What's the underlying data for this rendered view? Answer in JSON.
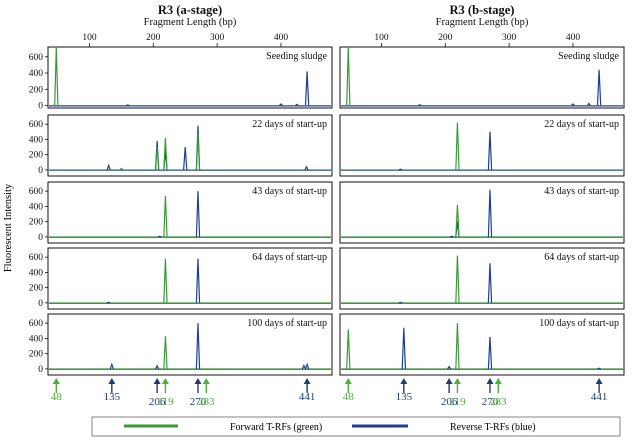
{
  "chart_data": {
    "type": "line",
    "ylabel": "Fluorescent Intensity",
    "columns": [
      {
        "title": "R3 (a-stage)",
        "xlabel": "Fragment Length (bp)",
        "xlim": [
          35,
          480
        ],
        "xticks": [
          100,
          200,
          300,
          400
        ],
        "panels": [
          {
            "label": "Seeding sludge",
            "ylim": [
              -30,
              720
            ],
            "yticks": [
              0,
              200,
              400,
              600
            ],
            "forward": [
              [
                48,
                720
              ]
            ],
            "reverse": [
              [
                441,
                420
              ],
              [
                400,
                20
              ],
              [
                425,
                15
              ],
              [
                160,
                8
              ]
            ]
          },
          {
            "label": "22 days of start-up",
            "ylim": [
              -80,
              720
            ],
            "yticks": [
              0,
              200,
              400,
              600
            ],
            "forward": [
              [
                206,
                300
              ],
              [
                219,
                420
              ],
              [
                270,
                480
              ],
              [
                150,
                20
              ]
            ],
            "reverse": [
              [
                206,
                380
              ],
              [
                219,
                250
              ],
              [
                250,
                300
              ],
              [
                270,
                580
              ],
              [
                130,
                60
              ],
              [
                440,
                40
              ]
            ]
          },
          {
            "label": "43 days of start-up",
            "ylim": [
              -80,
              720
            ],
            "yticks": [
              0,
              200,
              400,
              600
            ],
            "forward": [
              [
                219,
                540
              ]
            ],
            "reverse": [
              [
                270,
                600
              ],
              [
                210,
                8
              ]
            ]
          },
          {
            "label": "64 days of start-up",
            "ylim": [
              -80,
              720
            ],
            "yticks": [
              0,
              200,
              400,
              600
            ],
            "forward": [
              [
                219,
                580
              ]
            ],
            "reverse": [
              [
                270,
                580
              ],
              [
                130,
                8
              ]
            ]
          },
          {
            "label": "100 days of start-up",
            "ylim": [
              -80,
              720
            ],
            "yticks": [
              0,
              200,
              400,
              600
            ],
            "forward": [
              [
                219,
                430
              ]
            ],
            "reverse": [
              [
                270,
                600
              ],
              [
                135,
                60
              ],
              [
                206,
                40
              ],
              [
                441,
                60
              ],
              [
                436,
                45
              ]
            ]
          }
        ],
        "markers": [
          {
            "x": 48,
            "label": "48",
            "color": "green"
          },
          {
            "x": 135,
            "label": "135",
            "color": "blue"
          },
          {
            "x": 206,
            "label": "206",
            "color": "blue"
          },
          {
            "x": 219,
            "label": "219",
            "color": "green"
          },
          {
            "x": 270,
            "label": "270",
            "color": "blue"
          },
          {
            "x": 283,
            "label": "283",
            "color": "green"
          },
          {
            "x": 441,
            "label": "441",
            "color": "blue"
          }
        ]
      },
      {
        "title": "R3 (b-stage)",
        "xlabel": "Fragment Length (bp)",
        "xlim": [
          35,
          480
        ],
        "xticks": [
          100,
          200,
          300,
          400
        ],
        "panels": [
          {
            "label": "Seeding sludge",
            "ylim": [
              -30,
              720
            ],
            "yticks": [],
            "forward": [
              [
                48,
                720
              ]
            ],
            "reverse": [
              [
                441,
                440
              ],
              [
                400,
                20
              ],
              [
                425,
                25
              ],
              [
                160,
                10
              ]
            ]
          },
          {
            "label": "22 days of start-up",
            "ylim": [
              -80,
              720
            ],
            "yticks": [],
            "forward": [
              [
                219,
                620
              ]
            ],
            "reverse": [
              [
                270,
                500
              ],
              [
                130,
                10
              ]
            ]
          },
          {
            "label": "43 days of start-up",
            "ylim": [
              -80,
              720
            ],
            "yticks": [],
            "forward": [
              [
                219,
                420
              ]
            ],
            "reverse": [
              [
                219,
                200
              ],
              [
                270,
                620
              ],
              [
                210,
                8
              ]
            ]
          },
          {
            "label": "64 days of start-up",
            "ylim": [
              -80,
              720
            ],
            "yticks": [],
            "forward": [
              [
                219,
                620
              ]
            ],
            "reverse": [
              [
                270,
                520
              ],
              [
                130,
                8
              ]
            ]
          },
          {
            "label": "100 days of start-up",
            "ylim": [
              -80,
              720
            ],
            "yticks": [],
            "forward": [
              [
                48,
                520
              ],
              [
                219,
                600
              ]
            ],
            "reverse": [
              [
                135,
                540
              ],
              [
                206,
                30
              ],
              [
                270,
                420
              ],
              [
                441,
                10
              ]
            ]
          }
        ],
        "markers": [
          {
            "x": 48,
            "label": "48",
            "color": "green"
          },
          {
            "x": 135,
            "label": "135",
            "color": "blue"
          },
          {
            "x": 206,
            "label": "206",
            "color": "blue"
          },
          {
            "x": 219,
            "label": "219",
            "color": "green"
          },
          {
            "x": 270,
            "label": "270",
            "color": "blue"
          },
          {
            "x": 283,
            "label": "283",
            "color": "green"
          },
          {
            "x": 441,
            "label": "441",
            "color": "blue"
          }
        ]
      }
    ],
    "legend": [
      {
        "label": "Forward T-RFs (green)",
        "color": "#3a9a3a"
      },
      {
        "label": "Reverse T-RFs (blue)",
        "color": "#1f3e8f"
      }
    ],
    "legend_position": "bottom",
    "colors": {
      "forward": "#3a9a3a",
      "reverse": "#1f3e8f",
      "marker_green": "#4caf3c",
      "marker_blue": "#1f3e6f"
    }
  }
}
